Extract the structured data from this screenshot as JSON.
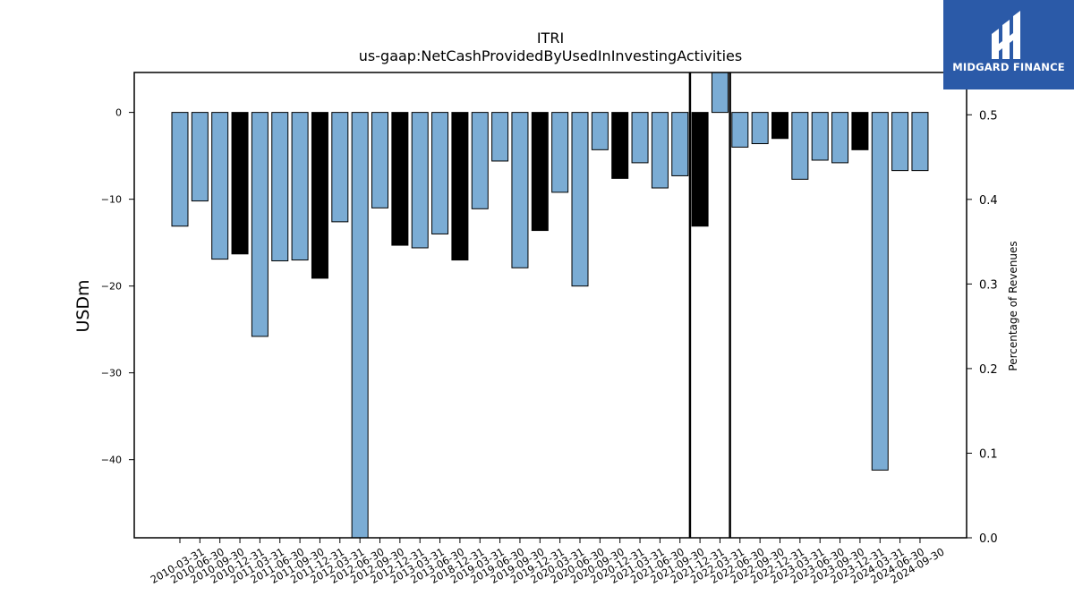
{
  "brand": {
    "name": "MIDGARD FINANCE",
    "color": "#2b5aa8"
  },
  "chart_data": {
    "type": "bar",
    "title": "ITRI",
    "subtitle": "us-gaap:NetCashProvidedByUsedInInvestingActivities",
    "ylabel": "USDm",
    "y2label": "Percentage of Revenues",
    "ylim": [
      -49,
      4.6
    ],
    "y2lim": [
      0.0,
      0.55
    ],
    "yticks": [
      0,
      -10,
      -20,
      -30,
      -40
    ],
    "y2ticks": [
      0.0,
      0.1,
      0.2,
      0.3,
      0.4,
      0.5
    ],
    "colors": {
      "normal": "#7bacd4",
      "highlight": "#000000"
    },
    "categories": [
      "2010-03-31",
      "2010-06-30",
      "2010-09-30",
      "2010-12-31",
      "2011-03-31",
      "2011-06-30",
      "2011-09-30",
      "2011-12-31",
      "2012-03-31",
      "2012-06-30",
      "2012-09-30",
      "2012-12-31",
      "2013-03-31",
      "2013-06-30",
      "2018-12-31",
      "2019-03-31",
      "2019-06-30",
      "2019-09-30",
      "2019-12-31",
      "2020-03-31",
      "2020-06-30",
      "2020-09-30",
      "2020-12-31",
      "2021-03-31",
      "2021-06-30",
      "2021-09-30",
      "2021-12-31",
      "2022-03-31",
      "2022-06-30",
      "2022-09-30",
      "2022-12-31",
      "2023-03-31",
      "2023-06-30",
      "2023-09-30",
      "2023-12-31",
      "2024-03-31",
      "2024-06-30",
      "2024-09-30"
    ],
    "values": [
      -13.1,
      -10.2,
      -16.9,
      -16.3,
      -25.8,
      -17.1,
      -17.0,
      -19.1,
      -12.6,
      -49.0,
      -11.0,
      -15.3,
      -15.6,
      -14.0,
      -17.0,
      -11.1,
      -5.6,
      -17.9,
      -13.6,
      -9.2,
      -20.0,
      -4.3,
      -7.6,
      -5.8,
      -8.7,
      -7.3,
      -13.1,
      4.6,
      -4.0,
      -3.6,
      -3.0,
      -7.7,
      -5.5,
      -5.8,
      -4.3,
      -41.2,
      -6.7,
      -6.7
    ],
    "highlight": [
      false,
      false,
      false,
      true,
      false,
      false,
      false,
      true,
      false,
      false,
      false,
      true,
      false,
      false,
      true,
      false,
      false,
      false,
      true,
      false,
      false,
      false,
      true,
      false,
      false,
      false,
      true,
      false,
      false,
      false,
      true,
      false,
      false,
      false,
      true,
      false,
      false,
      false
    ],
    "vlines_between": [
      [
        25,
        26
      ],
      [
        27,
        28
      ]
    ]
  }
}
